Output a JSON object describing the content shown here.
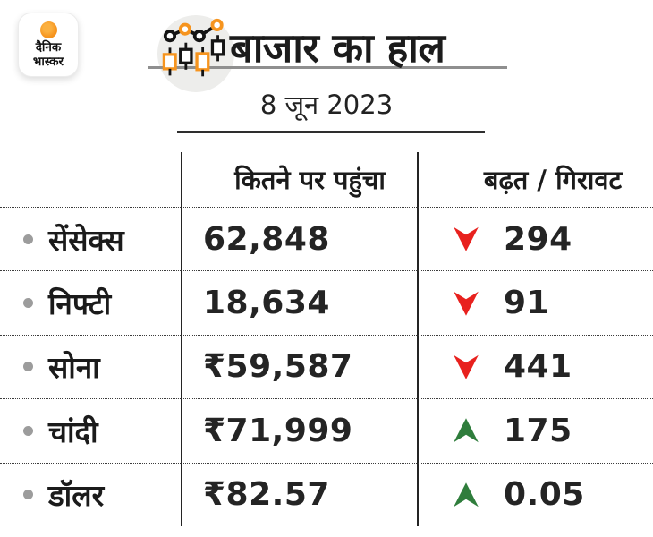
{
  "brand": {
    "logo_line1": "दैनिक",
    "logo_line2": "भास्कर"
  },
  "header": {
    "title": "बाजार का हाल",
    "date": "8 जून 2023"
  },
  "table": {
    "columns": [
      "",
      "कितने पर पहुंचा",
      "बढ़त / गिरावट"
    ],
    "rows": [
      {
        "label": "सेंसेक्स",
        "value": "62,848",
        "direction": "down",
        "change": "294"
      },
      {
        "label": "निफ्टी",
        "value": "18,634",
        "direction": "down",
        "change": "91"
      },
      {
        "label": "सोना",
        "value": "₹59,587",
        "direction": "down",
        "change": "441"
      },
      {
        "label": "चांदी",
        "value": "₹71,999",
        "direction": "up",
        "change": "175"
      },
      {
        "label": "डॉलर",
        "value": "₹82.57",
        "direction": "up",
        "change": "0.05"
      }
    ]
  },
  "colors": {
    "down_red": "#e8211e",
    "up_green": "#2f7d3c",
    "accent_orange": "#f6941e",
    "text": "#1b1b1b"
  },
  "icons": {
    "title_icon": "candlestick-chart-icon",
    "up": "up-arrow-icon",
    "down": "down-arrow-icon",
    "bullet": "bullet-dot-icon",
    "logo_sun": "sun-icon"
  },
  "chart_data": {
    "type": "table",
    "title": "बाजार का हाल",
    "subtitle": "8 जून 2023",
    "columns": [
      "",
      "कितने पर पहुंचा",
      "बढ़त / गिरावट"
    ],
    "rows": [
      {
        "name": "सेंसेक्स",
        "level": "62,848",
        "change_direction": "down",
        "change_value": 294
      },
      {
        "name": "निफ्टी",
        "level": "18,634",
        "change_direction": "down",
        "change_value": 91
      },
      {
        "name": "सोना",
        "level": "₹59,587",
        "change_direction": "down",
        "change_value": 441
      },
      {
        "name": "चांदी",
        "level": "₹71,999",
        "change_direction": "up",
        "change_value": 175
      },
      {
        "name": "डॉलर",
        "level": "₹82.57",
        "change_direction": "up",
        "change_value": 0.05
      }
    ],
    "legend": {
      "down_marker_color": "#e8211e",
      "up_marker_color": "#2f7d3c"
    }
  }
}
